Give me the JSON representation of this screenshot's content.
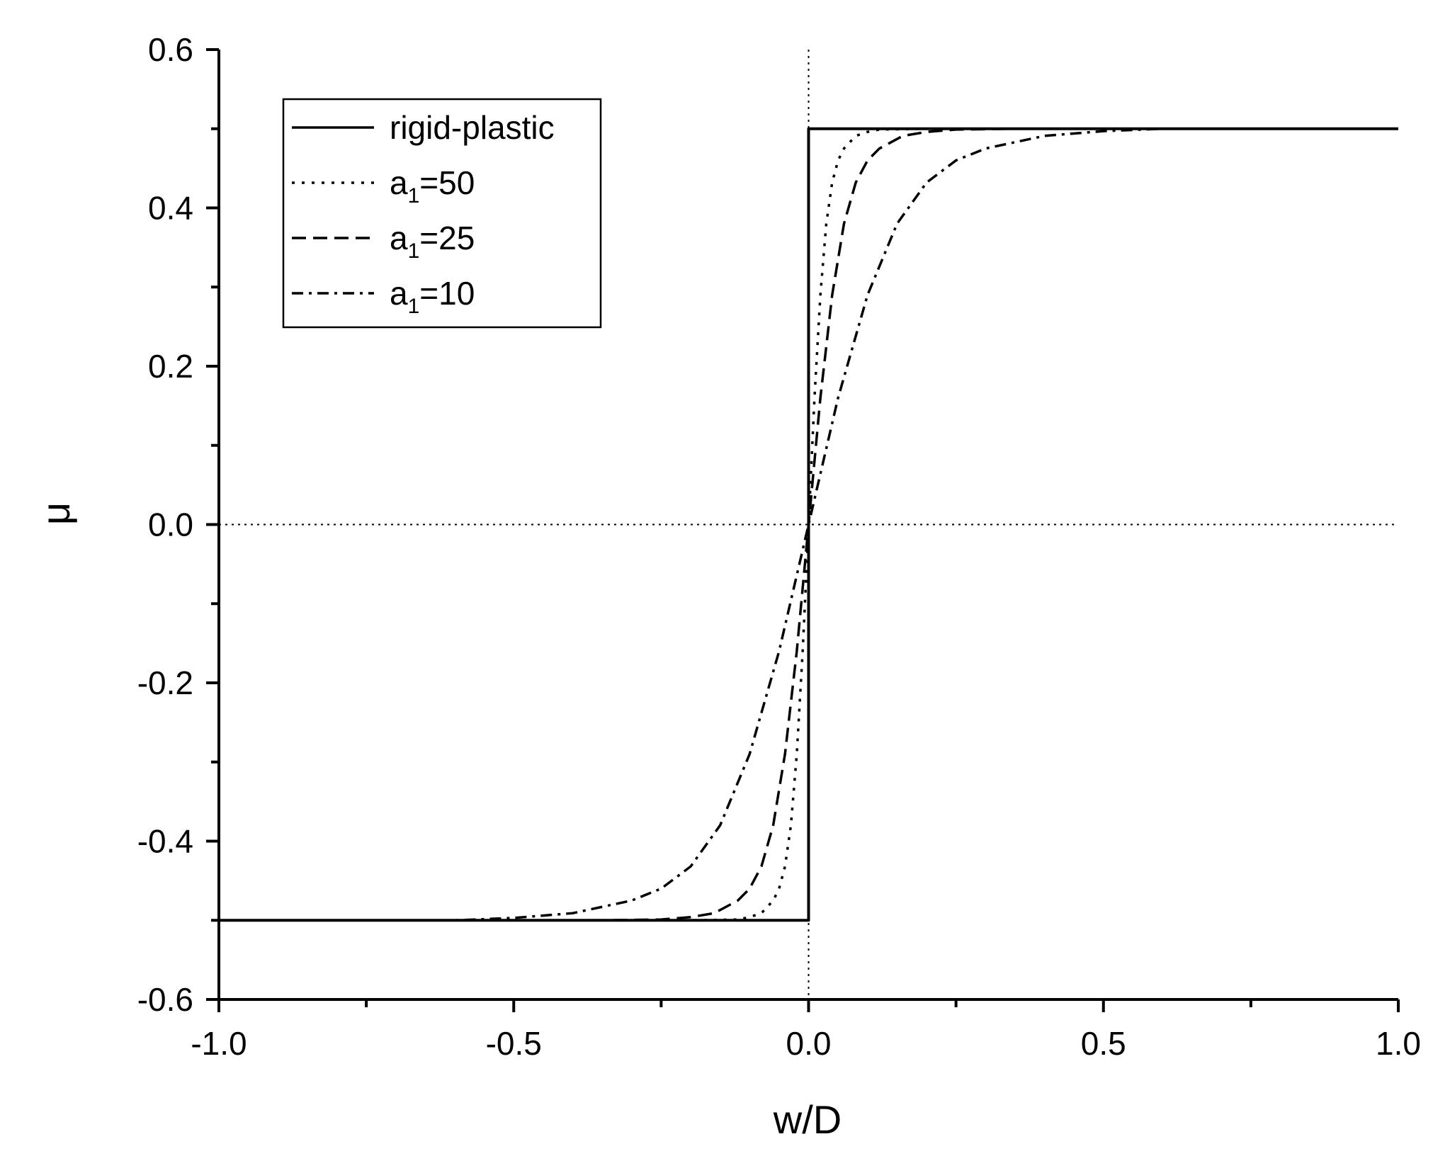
{
  "chart_data": {
    "type": "line",
    "xlabel": "w/D",
    "ylabel": "μ",
    "xlim": [
      -1.0,
      1.0
    ],
    "ylim": [
      -0.6,
      0.6
    ],
    "x_ticks": [
      -1.0,
      -0.5,
      0.0,
      0.5,
      1.0
    ],
    "x_tick_labels": [
      "-1.0",
      "-0.5",
      "0.0",
      "0.5",
      "1.0"
    ],
    "y_ticks": [
      -0.6,
      -0.4,
      -0.2,
      0.0,
      0.2,
      0.4,
      0.6
    ],
    "y_tick_labels": [
      "-0.6",
      "-0.4",
      "-0.2",
      "0.0",
      "0.2",
      "0.4",
      "0.6"
    ],
    "grid": false,
    "reference_lines": [
      {
        "orientation": "horizontal",
        "value": 0.0,
        "style": "dotted"
      },
      {
        "orientation": "vertical",
        "value": 0.0,
        "style": "dotted"
      }
    ],
    "legend": {
      "position": "top-left",
      "entries": [
        {
          "base": "rigid-plastic",
          "sub": "",
          "suffix": "",
          "style": "solid"
        },
        {
          "base": "a",
          "sub": "1",
          "suffix": "=50",
          "style": "dotted"
        },
        {
          "base": "a",
          "sub": "1",
          "suffix": "=25",
          "style": "dashed"
        },
        {
          "base": "a",
          "sub": "1",
          "suffix": "=10",
          "style": "dashdot"
        }
      ]
    },
    "series": [
      {
        "name": "rigid-plastic",
        "style": "solid",
        "x": [
          -1.0,
          0.0,
          0.0,
          1.0
        ],
        "y": [
          -0.5,
          -0.5,
          0.5,
          0.5
        ]
      },
      {
        "name": "a1=50",
        "style": "dotted",
        "x": [
          -0.8,
          -0.2,
          -0.12,
          -0.1,
          -0.08,
          -0.06,
          -0.05,
          -0.04,
          -0.03,
          -0.02,
          -0.01,
          0.0,
          0.01,
          0.02,
          0.03,
          0.04,
          0.05,
          0.06,
          0.08,
          0.1,
          0.12,
          0.2,
          0.8
        ],
        "y": [
          -0.5,
          -0.5,
          -0.499,
          -0.496,
          -0.491,
          -0.475,
          -0.46,
          -0.432,
          -0.38,
          -0.29,
          -0.16,
          0.0,
          0.16,
          0.29,
          0.38,
          0.432,
          0.46,
          0.475,
          0.491,
          0.496,
          0.499,
          0.5,
          0.5
        ]
      },
      {
        "name": "a1=25",
        "style": "dashed",
        "x": [
          -0.8,
          -0.35,
          -0.25,
          -0.2,
          -0.16,
          -0.12,
          -0.1,
          -0.08,
          -0.06,
          -0.04,
          -0.02,
          0.0,
          0.02,
          0.04,
          0.06,
          0.08,
          0.1,
          0.12,
          0.16,
          0.2,
          0.25,
          0.35,
          0.8
        ],
        "y": [
          -0.5,
          -0.5,
          -0.499,
          -0.496,
          -0.491,
          -0.475,
          -0.46,
          -0.432,
          -0.38,
          -0.29,
          -0.16,
          0.0,
          0.16,
          0.29,
          0.38,
          0.432,
          0.46,
          0.475,
          0.491,
          0.496,
          0.499,
          0.5,
          0.5
        ]
      },
      {
        "name": "a1=10",
        "style": "dashdot",
        "x": [
          -0.8,
          -0.6,
          -0.5,
          -0.4,
          -0.3,
          -0.25,
          -0.2,
          -0.15,
          -0.1,
          -0.05,
          0.0,
          0.05,
          0.1,
          0.15,
          0.2,
          0.25,
          0.3,
          0.4,
          0.5,
          0.6,
          0.8
        ],
        "y": [
          -0.5,
          -0.5,
          -0.497,
          -0.491,
          -0.475,
          -0.46,
          -0.432,
          -0.38,
          -0.29,
          -0.16,
          0.0,
          0.16,
          0.29,
          0.38,
          0.432,
          0.46,
          0.475,
          0.491,
          0.497,
          0.5,
          0.5
        ]
      }
    ]
  }
}
